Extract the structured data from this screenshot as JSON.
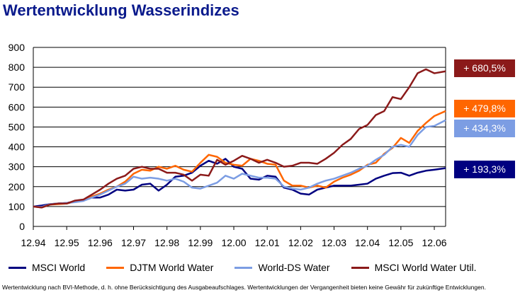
{
  "title": "Wertentwicklung Wasserindizes",
  "footnote": "Wertentwicklung nach BVI-Methode, d. h. ohne Berücksichtigung des Ausgabeaufschlages. Wertentwicklungen der Vergangenheit bieten keine Gewähr für zukünftige Entwicklungen.",
  "chart_data": {
    "type": "line",
    "title": "Wertentwicklung Wasserindizes",
    "ylim": [
      0,
      900
    ],
    "yticks": [
      "0",
      "100",
      "200",
      "300",
      "400",
      "500",
      "600",
      "700",
      "800",
      "900"
    ],
    "xticks": [
      "12.94",
      "12.95",
      "12.96",
      "12.97",
      "12.98",
      "12.99",
      "12.00",
      "12.01",
      "12.02",
      "12.03",
      "12.04",
      "12.05",
      "12.06"
    ],
    "grid": true,
    "legend": "bottom",
    "x_start": "1994-12",
    "x_step_months": 3,
    "series": [
      {
        "name": "MSCI World",
        "color": "#000080",
        "end_label": "+ 193,3%",
        "values": [
          100,
          105,
          112,
          115,
          118,
          125,
          130,
          145,
          145,
          160,
          185,
          180,
          185,
          210,
          215,
          180,
          210,
          250,
          255,
          270,
          305,
          330,
          315,
          340,
          300,
          290,
          240,
          235,
          255,
          250,
          195,
          185,
          165,
          160,
          185,
          195,
          205,
          205,
          205,
          210,
          215,
          240,
          255,
          268,
          270,
          255,
          270,
          280,
          285,
          293
        ]
      },
      {
        "name": "DJTM World Water",
        "color": "#FF6600",
        "end_label": "+ 479,8%",
        "values": [
          100,
          95,
          110,
          112,
          115,
          125,
          130,
          150,
          165,
          185,
          200,
          225,
          265,
          285,
          280,
          300,
          290,
          305,
          285,
          275,
          320,
          360,
          350,
          320,
          310,
          305,
          340,
          330,
          315,
          310,
          230,
          205,
          205,
          195,
          205,
          195,
          225,
          245,
          260,
          280,
          310,
          320,
          365,
          395,
          445,
          420,
          480,
          520,
          555,
          580
        ]
      },
      {
        "name": "World-DS Water",
        "color": "#7C9DE3",
        "end_label": "+ 434,3%",
        "values": [
          100,
          98,
          112,
          115,
          118,
          122,
          128,
          145,
          160,
          180,
          200,
          215,
          250,
          240,
          245,
          240,
          230,
          240,
          225,
          195,
          190,
          205,
          220,
          255,
          240,
          265,
          255,
          245,
          245,
          240,
          200,
          190,
          185,
          195,
          215,
          230,
          240,
          255,
          270,
          290,
          305,
          335,
          360,
          400,
          410,
          400,
          460,
          500,
          505,
          534
        ]
      },
      {
        "name": "MSCI World Water Util.",
        "color": "#8B1A1A",
        "end_label": "+ 680,5%",
        "values": [
          100,
          95,
          110,
          115,
          115,
          130,
          135,
          160,
          185,
          215,
          240,
          255,
          290,
          300,
          290,
          290,
          270,
          270,
          260,
          230,
          260,
          255,
          335,
          310,
          330,
          355,
          340,
          320,
          335,
          320,
          300,
          305,
          320,
          320,
          315,
          340,
          370,
          410,
          440,
          490,
          510,
          560,
          580,
          650,
          640,
          700,
          770,
          790,
          770,
          780
        ]
      }
    ]
  }
}
